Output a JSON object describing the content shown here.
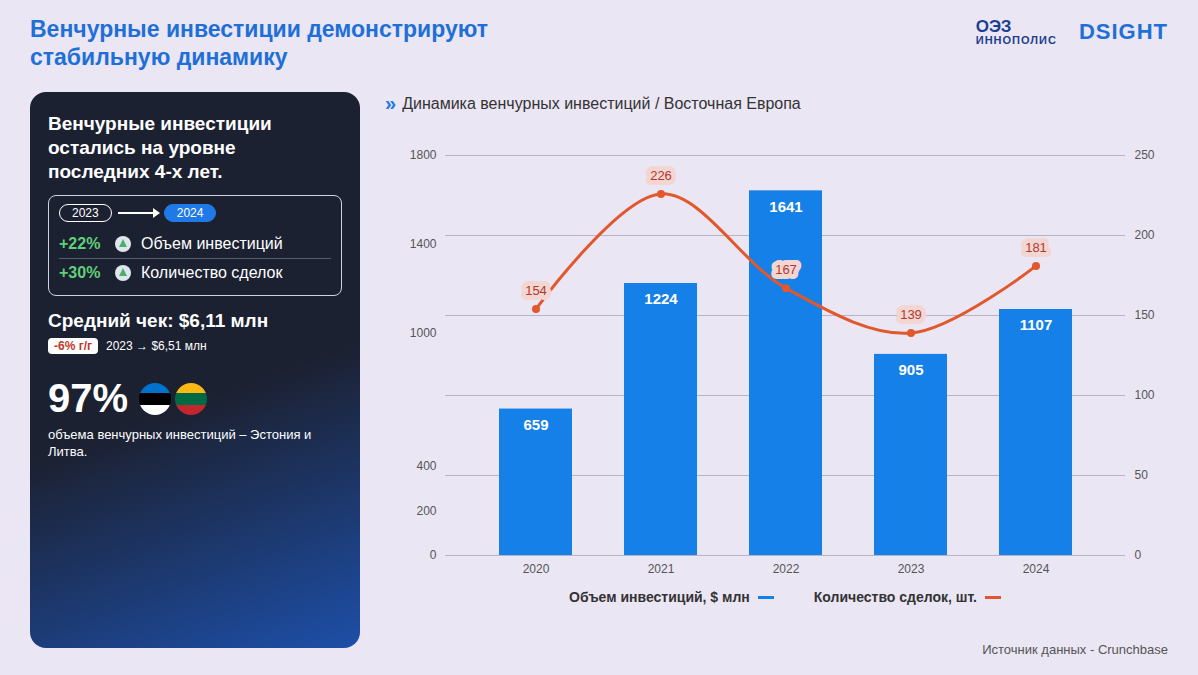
{
  "title": "Венчурные инвестиции демонстрируют стабильную динамику",
  "logos": [
    "ОЭЗ",
    "ИННОПОЛИС",
    "DSIGHT"
  ],
  "panel": {
    "headline": "Венчурные инвестиции остались на уровне последних 4-х лет.",
    "period_from": "2023",
    "period_to": "2024",
    "metrics": [
      {
        "change": "+22%",
        "label": "Объем инвестиций"
      },
      {
        "change": "+30%",
        "label": "Количество сделок"
      }
    ],
    "average_check": "Средний чек: $6,11 млн",
    "average_change": "-6% г/г",
    "average_prev": "2023 → $6,51 млн",
    "share": "97%",
    "share_text": "объема венчурных инвестиций – Эстония и Литва."
  },
  "chart_data": {
    "type": "bar",
    "title": "Динамика венчурных инвестиций / Восточная Европа",
    "categories": [
      "2020",
      "2021",
      "2022",
      "2023",
      "2024"
    ],
    "series": [
      {
        "name": "Объем инвестиций, $ млн",
        "type": "bar",
        "color": "#1580e8",
        "values": [
          659,
          1224,
          1641,
          905,
          1107
        ]
      },
      {
        "name": "Количество сделок, шт.",
        "type": "line",
        "axis": "y2",
        "color": "#e2572b",
        "marker": "circle",
        "line_style": "solid",
        "values": [
          154,
          226,
          167,
          139,
          181
        ]
      }
    ],
    "ylim": [
      0,
      1800
    ],
    "yticks": [
      0,
      200,
      400,
      1000,
      1400,
      1800
    ],
    "y2lim": [
      0,
      250
    ],
    "y2ticks": [
      0,
      50,
      100,
      150,
      200,
      250
    ],
    "grid": true,
    "data_labels": true,
    "legend": "bottom"
  },
  "source": "Источник данных - Crunchbase"
}
